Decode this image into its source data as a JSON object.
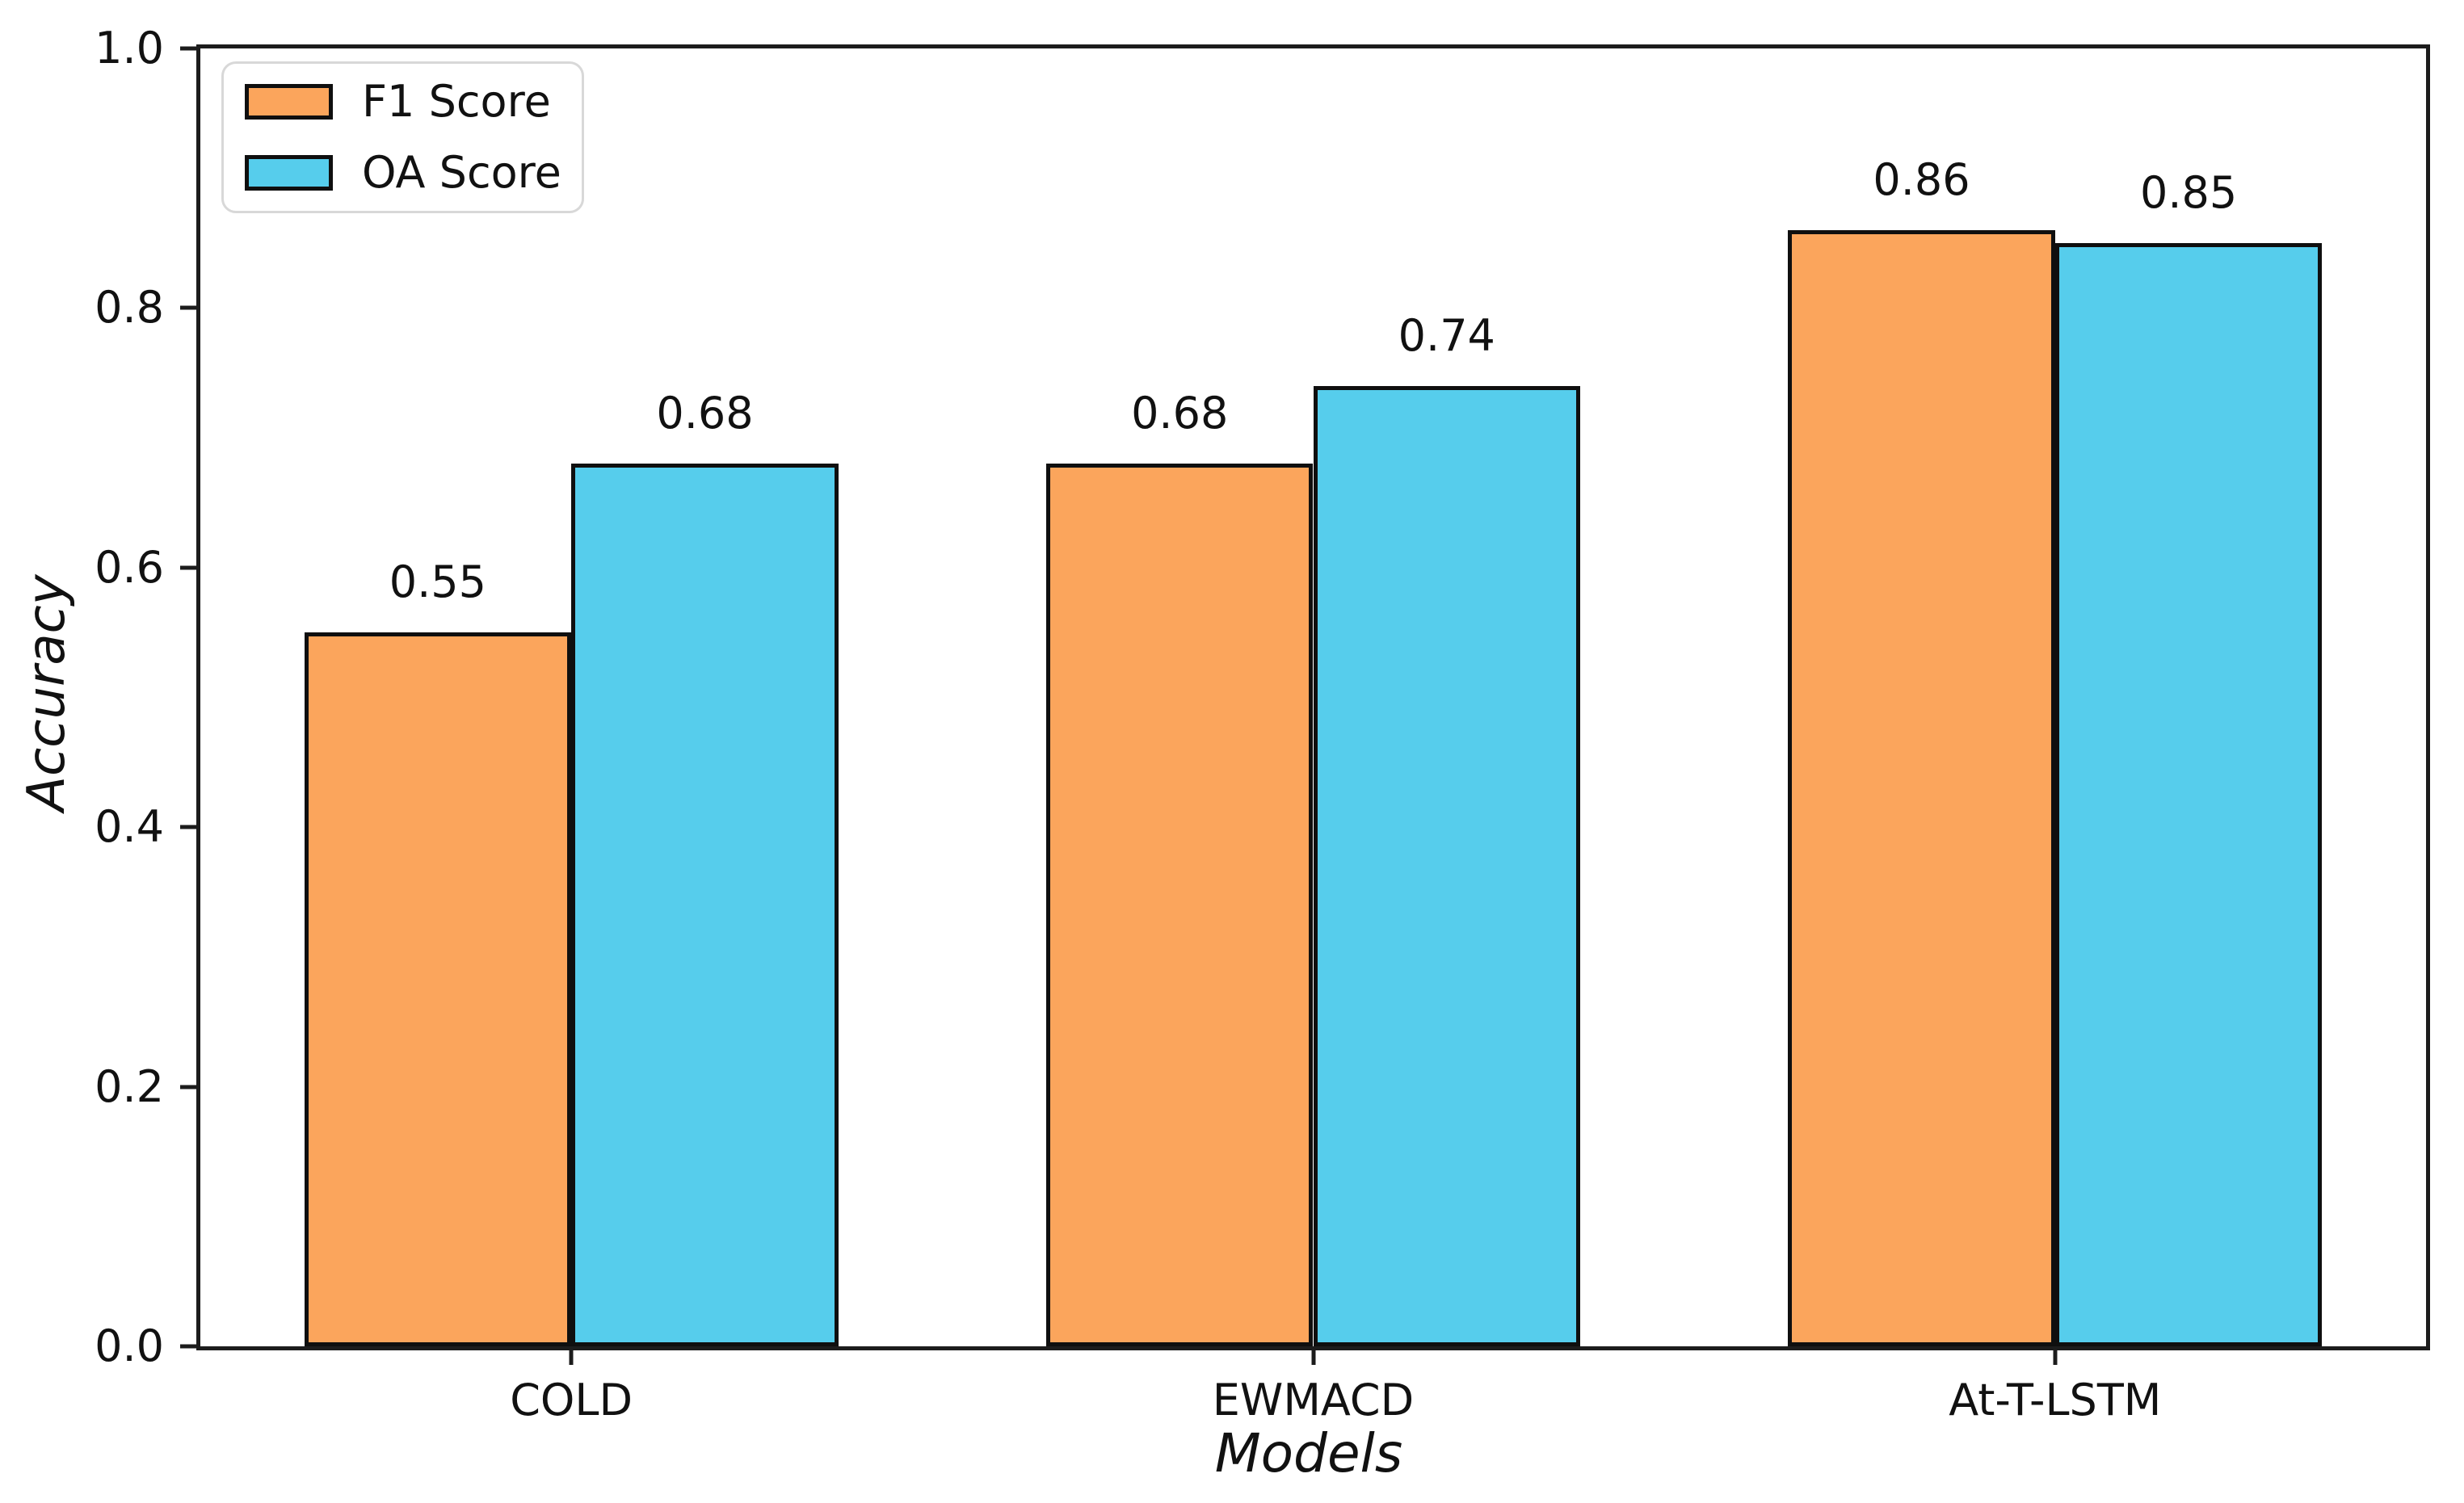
{
  "colors": {
    "f1_bar": "#FBA55C",
    "oa_bar": "#56CDEC",
    "bar_edge": "#0f0f0f",
    "spine": "#1c1c1c",
    "legend_border": "#d8d8d8",
    "background": "#ffffff",
    "text": "#111111"
  },
  "chart_data": {
    "type": "bar",
    "title": "",
    "xlabel": "Models",
    "ylabel": "Accuracy",
    "categories": [
      "COLD",
      "EWMACD",
      "At-T-LSTM"
    ],
    "series": [
      {
        "name": "F1 Score",
        "color": "#FBA55C",
        "values": [
          0.55,
          0.68,
          0.86
        ]
      },
      {
        "name": "OA Score",
        "color": "#56CDEC",
        "values": [
          0.68,
          0.74,
          0.85
        ]
      }
    ],
    "bar_labels": [
      "0.55",
      "0.68",
      "0.86",
      "0.68",
      "0.74",
      "0.85"
    ],
    "ylim": [
      0.0,
      1.0
    ],
    "yticks": [
      "1.0",
      "0.8",
      "0.6",
      "0.4",
      "0.2",
      "0.0"
    ],
    "grid": false,
    "legend_position": "upper-left"
  }
}
